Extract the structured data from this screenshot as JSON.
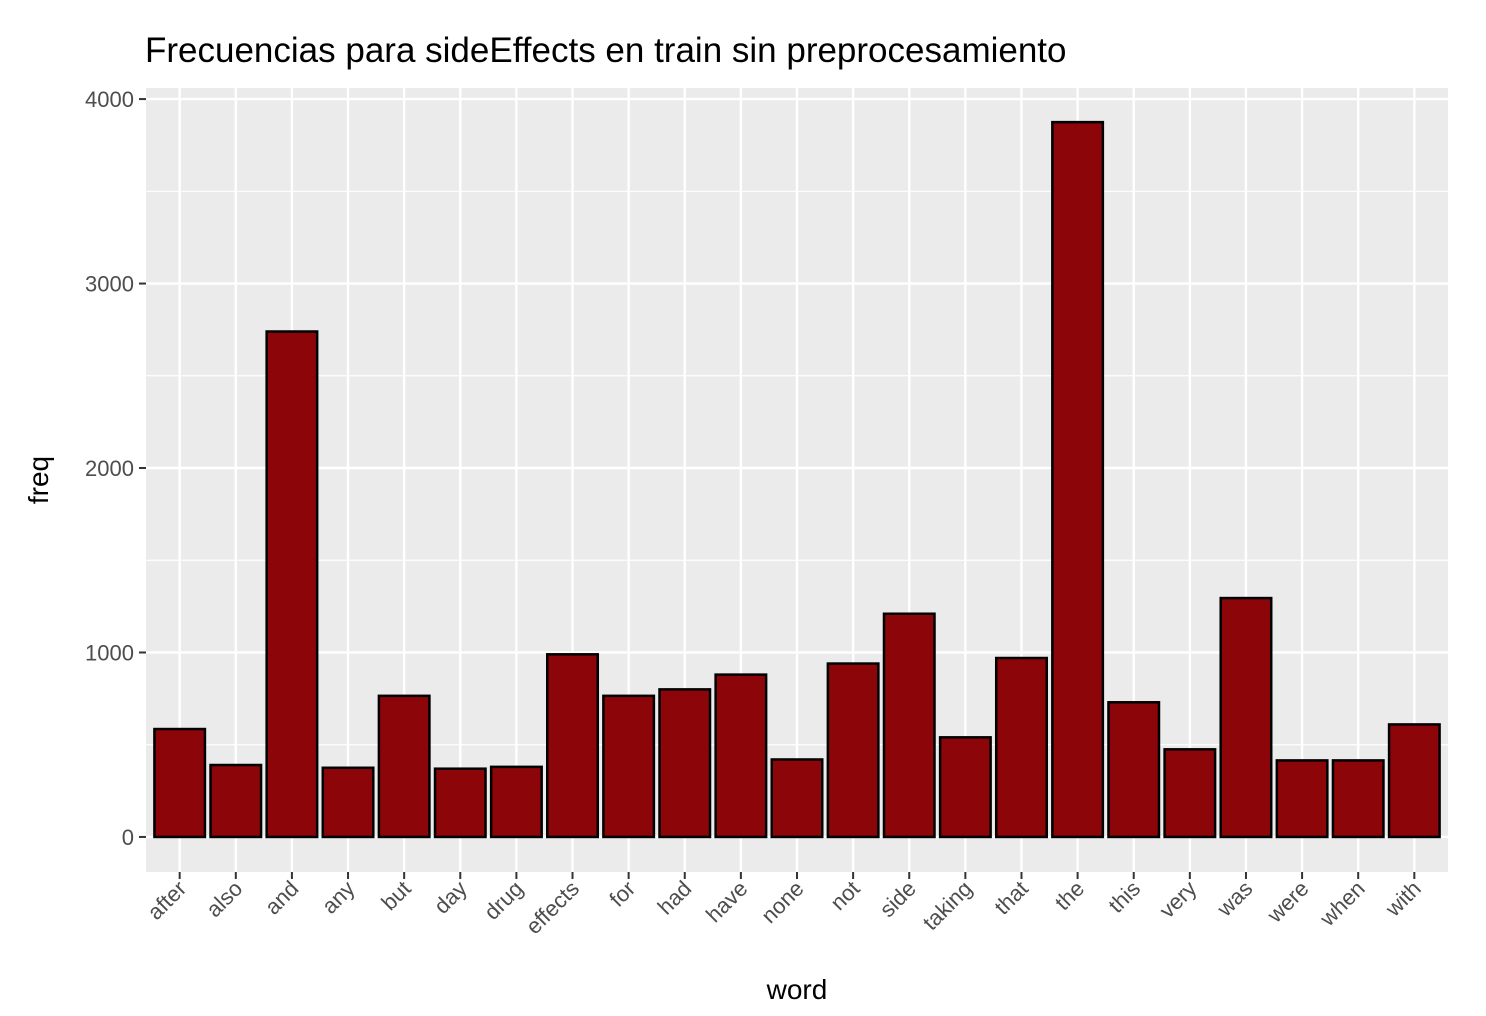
{
  "chart_data": {
    "type": "bar",
    "title": "Frecuencias para sideEffects en train sin preprocesamiento",
    "xlabel": "word",
    "ylabel": "freq",
    "categories": [
      "after",
      "also",
      "and",
      "any",
      "but",
      "day",
      "drug",
      "effects",
      "for",
      "had",
      "have",
      "none",
      "not",
      "side",
      "taking",
      "that",
      "the",
      "this",
      "very",
      "was",
      "were",
      "when",
      "with"
    ],
    "values": [
      585,
      390,
      2740,
      375,
      765,
      370,
      380,
      990,
      765,
      800,
      880,
      420,
      940,
      1210,
      540,
      970,
      3875,
      730,
      475,
      1295,
      415,
      415,
      610
    ],
    "ylim": [
      -190,
      4060
    ],
    "yticks": [
      0,
      1000,
      2000,
      3000,
      4000
    ],
    "grid": true,
    "colors": {
      "bar_fill": "#8b0509",
      "bar_stroke": "#000000",
      "panel_bg": "#ebebeb",
      "grid": "#ffffff"
    }
  }
}
